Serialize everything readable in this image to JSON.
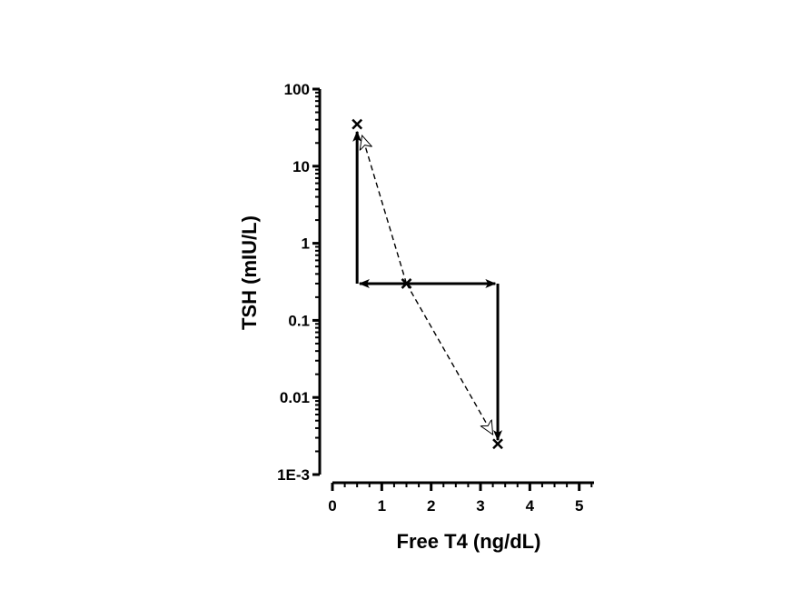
{
  "chart_data": {
    "type": "scatter",
    "title": "",
    "xlabel": "Free T4 (ng/dL)",
    "ylabel": "TSH (mIU/L)",
    "x_scale": "linear",
    "y_scale": "log",
    "xlim": [
      0,
      5.3
    ],
    "ylim": [
      0.001,
      100
    ],
    "x_ticks": [
      0,
      1,
      2,
      3,
      4,
      5
    ],
    "x_tick_labels": [
      "0",
      "1",
      "2",
      "3",
      "4",
      "5"
    ],
    "y_ticks": [
      0.001,
      0.01,
      0.1,
      1,
      10,
      100
    ],
    "y_tick_labels": [
      "1E-3",
      "0.01",
      "0.1",
      "1",
      "10",
      "100"
    ],
    "grid": false,
    "legend": "none",
    "points": [
      {
        "x": 0.5,
        "y": 35,
        "marker": "x"
      },
      {
        "x": 1.5,
        "y": 0.3,
        "marker": "x"
      },
      {
        "x": 3.35,
        "y": 0.0025,
        "marker": "x"
      }
    ],
    "solid_arrows": [
      {
        "from": [
          0.5,
          0.3
        ],
        "to": [
          0.5,
          28
        ],
        "style": "solid",
        "head": "filled"
      },
      {
        "from": [
          1.5,
          0.3
        ],
        "to": [
          0.55,
          0.3
        ],
        "style": "solid",
        "head": "filled"
      },
      {
        "from": [
          1.5,
          0.3
        ],
        "to": [
          3.3,
          0.3
        ],
        "style": "solid",
        "head": "filled"
      },
      {
        "from": [
          3.35,
          0.3
        ],
        "to": [
          3.35,
          0.0028
        ],
        "style": "solid",
        "head": "filled"
      }
    ],
    "dashed_arrows": [
      {
        "from": [
          1.5,
          0.3
        ],
        "to": [
          0.6,
          25
        ],
        "style": "dashed",
        "head": "open"
      },
      {
        "from": [
          1.5,
          0.3
        ],
        "to": [
          3.25,
          0.0033
        ],
        "style": "dashed",
        "head": "open"
      }
    ],
    "colors": {
      "axis": "#000000",
      "marks": "#000000",
      "background": "#ffffff"
    }
  }
}
